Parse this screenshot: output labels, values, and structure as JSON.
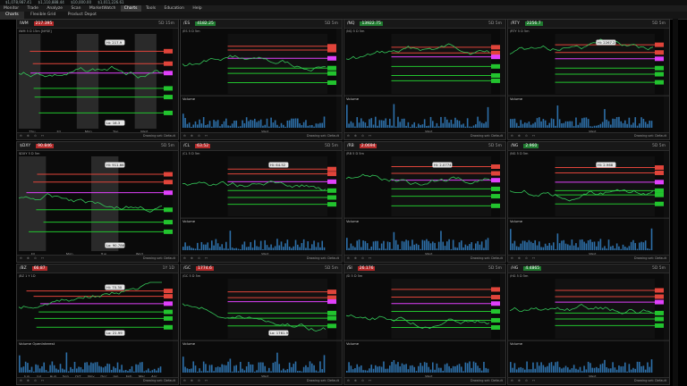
{
  "topbar": {
    "items": [
      "$1,078,987.41",
      "$1,110,888.44",
      "$10,000.00",
      "$1,011,226.61"
    ]
  },
  "menubar": {
    "items": [
      "Monitor",
      "Trade",
      "Analyze",
      "Scan",
      "MarketWatch",
      "Charts",
      "Tools",
      "Education",
      "Help"
    ],
    "active": "Charts"
  },
  "tabbar": {
    "items": [
      "Charts",
      "Flexible Grid",
      "Product Depot"
    ]
  },
  "footer": {
    "drawing_set": "Drawing set: Default"
  },
  "panels": [
    {
      "symbol": "IWM",
      "price": "217.395",
      "trend": "neg",
      "header_tf": "5D 15m",
      "info": "IWM 5 D 15m [NYSE]",
      "hi_label": "Hi: 217.9",
      "lo_label": "Lo: 16.3",
      "x_labels": [
        "Thu",
        "Fri",
        "Mon",
        "Tue",
        "Wed"
      ],
      "volume_label": ""
    },
    {
      "symbol": "/ES",
      "price": "4182.25",
      "trend": "pos",
      "header_tf": "5D 5m",
      "info": "/ES 5 D 5m",
      "hi_label": "",
      "lo_label": "",
      "x_labels": [
        "Wed"
      ],
      "volume_label": "Volume"
    },
    {
      "symbol": "/NQ",
      "price": "13922.75",
      "trend": "pos",
      "header_tf": "5D 5m",
      "info": "/NQ 5 D 5m",
      "hi_label": "",
      "lo_label": "",
      "x_labels": [
        "Wed"
      ],
      "volume_label": "Volume"
    },
    {
      "symbol": "/RTY",
      "price": "2256.7",
      "trend": "pos",
      "header_tf": "5D 5m",
      "info": "/RTY 5 D 5m",
      "hi_label": "Hi: 2267.2",
      "lo_label": "",
      "x_labels": [
        "Wed"
      ],
      "volume_label": "Volume"
    },
    {
      "symbol": "$DXY",
      "price": "90.846",
      "trend": "neg",
      "header_tf": "5D 5m",
      "info": "$DXY 5 D 5m",
      "hi_label": "Hi: 911.66",
      "lo_label": "Lo: 90.786",
      "x_labels": [
        "Fri",
        "Mon",
        "Tue",
        "Wed"
      ],
      "volume_label": ""
    },
    {
      "symbol": "/CL",
      "price": "63.52",
      "trend": "neg",
      "header_tf": "5D 5m",
      "info": "/CL 5 D 5m",
      "hi_label": "Hi: 64.52",
      "lo_label": "",
      "x_labels": [
        "Wed"
      ],
      "volume_label": "Volume"
    },
    {
      "symbol": "/RB",
      "price": "2.0694",
      "trend": "neg",
      "header_tf": "5D 5m",
      "info": "/RB 5 D 5m",
      "hi_label": "Hi: 2.0774",
      "lo_label": "",
      "x_labels": [
        "Wed"
      ],
      "volume_label": "Volume"
    },
    {
      "symbol": "/NG",
      "price": "2.960",
      "trend": "pos",
      "header_tf": "5D 5m",
      "info": "/NG 5 D 5m",
      "hi_label": "Hi: 2.968",
      "lo_label": "",
      "x_labels": [
        "Wed"
      ],
      "volume_label": "Volume"
    },
    {
      "symbol": "/BZ",
      "price": "66.87",
      "trend": "neg",
      "header_tf": "1Y 1D",
      "info": "/BZ 1 Y 1D",
      "hi_label": "Hi: 70.30",
      "lo_label": "Lo: 21.99",
      "x_labels": [
        "Jun",
        "Jul",
        "Aug",
        "Sep",
        "Oct",
        "Nov",
        "Dec",
        "Jan",
        "Feb",
        "Mar",
        "Apr"
      ],
      "volume_label": "Volume  OpenInterest"
    },
    {
      "symbol": "/GC",
      "price": "1774.6",
      "trend": "neg",
      "header_tf": "5D 5m",
      "info": "/GC 5 D 5m",
      "hi_label": "",
      "lo_label": "Lo: 1761.9",
      "x_labels": [
        "Wed"
      ],
      "volume_label": "Volume"
    },
    {
      "symbol": "/SI",
      "price": "26.176",
      "trend": "neg",
      "header_tf": "5D 5m",
      "info": "/SI 5 D 5m",
      "hi_label": "",
      "lo_label": "",
      "x_labels": [
        "Wed"
      ],
      "volume_label": "Volume"
    },
    {
      "symbol": "/HG",
      "price": "4.4865",
      "trend": "pos",
      "header_tf": "5D 5m",
      "info": "/HG 5 D 5m",
      "hi_label": "",
      "lo_label": "",
      "x_labels": [
        "Wed"
      ],
      "volume_label": "Volume"
    }
  ],
  "colors": {
    "bg": "#0a0a0a",
    "candle_up": "#34c759",
    "candle_down": "#e0443a",
    "resistance": "#e0443a",
    "support": "#22c32e",
    "vwap": "#e040fb",
    "volume": "#2d6fa8",
    "price_line": "#bdbdbd"
  }
}
